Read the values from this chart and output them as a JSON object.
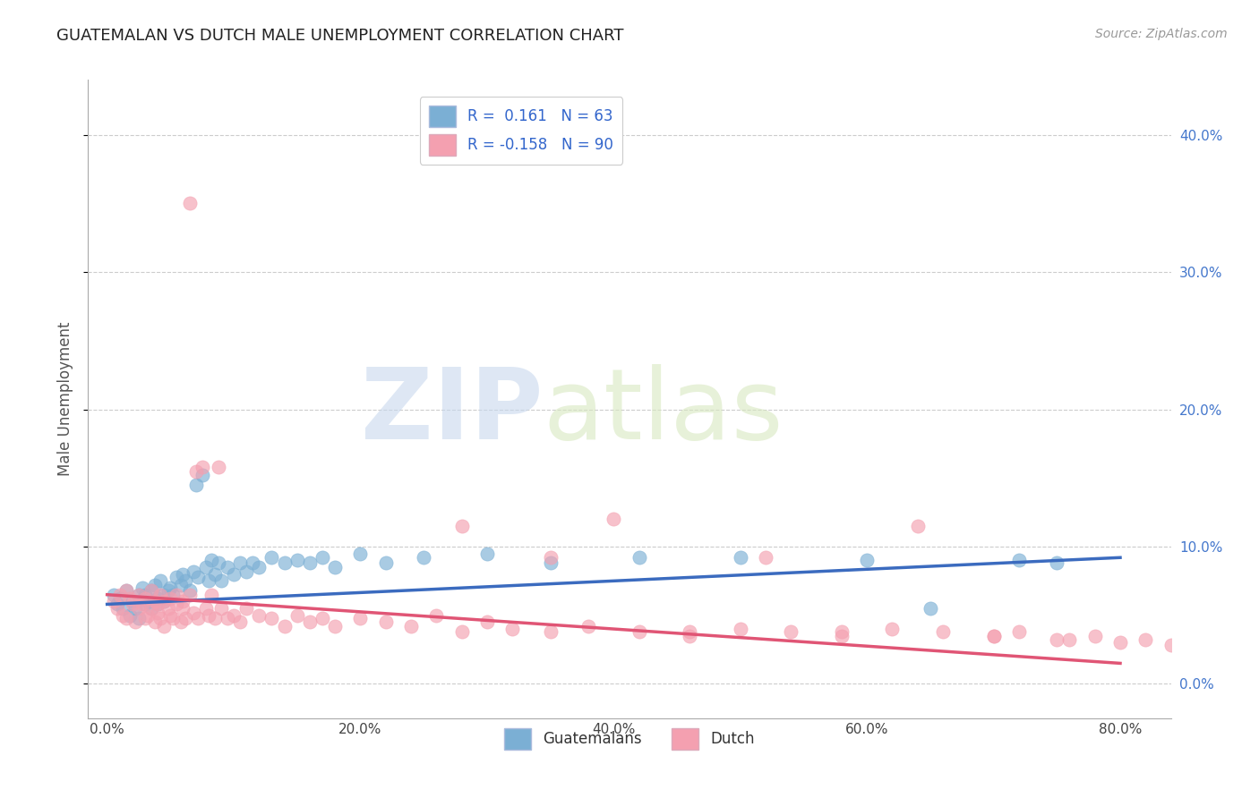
{
  "title": "GUATEMALAN VS DUTCH MALE UNEMPLOYMENT CORRELATION CHART",
  "source": "Source: ZipAtlas.com",
  "ylabel": "Male Unemployment",
  "xlabel_ticks": [
    "0.0%",
    "20.0%",
    "40.0%",
    "60.0%",
    "80.0%"
  ],
  "xlabel_vals": [
    0.0,
    0.2,
    0.4,
    0.6,
    0.8
  ],
  "ylabel_ticks": [
    "0.0%",
    "10.0%",
    "20.0%",
    "30.0%",
    "40.0%"
  ],
  "ylabel_vals": [
    0.0,
    0.1,
    0.2,
    0.3,
    0.4
  ],
  "xlim": [
    -0.015,
    0.84
  ],
  "ylim": [
    -0.025,
    0.44
  ],
  "blue_color": "#7BAFD4",
  "pink_color": "#F4A0B0",
  "blue_line_color": "#3B6BBF",
  "pink_line_color": "#E05575",
  "blue_scatter_x": [
    0.005,
    0.008,
    0.01,
    0.012,
    0.015,
    0.018,
    0.02,
    0.022,
    0.025,
    0.025,
    0.028,
    0.03,
    0.03,
    0.032,
    0.035,
    0.035,
    0.038,
    0.04,
    0.04,
    0.042,
    0.045,
    0.045,
    0.048,
    0.05,
    0.052,
    0.055,
    0.058,
    0.06,
    0.062,
    0.065,
    0.068,
    0.07,
    0.072,
    0.075,
    0.078,
    0.08,
    0.082,
    0.085,
    0.088,
    0.09,
    0.095,
    0.1,
    0.105,
    0.11,
    0.115,
    0.12,
    0.13,
    0.14,
    0.15,
    0.16,
    0.17,
    0.18,
    0.2,
    0.22,
    0.25,
    0.3,
    0.35,
    0.42,
    0.5,
    0.6,
    0.65,
    0.72,
    0.75
  ],
  "blue_scatter_y": [
    0.065,
    0.058,
    0.062,
    0.055,
    0.068,
    0.05,
    0.06,
    0.055,
    0.065,
    0.048,
    0.07,
    0.058,
    0.065,
    0.06,
    0.068,
    0.055,
    0.072,
    0.062,
    0.058,
    0.075,
    0.065,
    0.06,
    0.068,
    0.07,
    0.065,
    0.078,
    0.072,
    0.08,
    0.075,
    0.068,
    0.082,
    0.145,
    0.078,
    0.152,
    0.085,
    0.075,
    0.09,
    0.08,
    0.088,
    0.075,
    0.085,
    0.08,
    0.088,
    0.082,
    0.088,
    0.085,
    0.092,
    0.088,
    0.09,
    0.088,
    0.092,
    0.085,
    0.095,
    0.088,
    0.092,
    0.095,
    0.088,
    0.092,
    0.092,
    0.09,
    0.055,
    0.09,
    0.088
  ],
  "pink_scatter_x": [
    0.005,
    0.008,
    0.01,
    0.012,
    0.015,
    0.015,
    0.018,
    0.02,
    0.022,
    0.025,
    0.025,
    0.028,
    0.03,
    0.03,
    0.032,
    0.035,
    0.035,
    0.038,
    0.038,
    0.04,
    0.04,
    0.042,
    0.042,
    0.045,
    0.045,
    0.048,
    0.05,
    0.05,
    0.052,
    0.055,
    0.055,
    0.058,
    0.06,
    0.06,
    0.062,
    0.065,
    0.065,
    0.068,
    0.07,
    0.072,
    0.075,
    0.078,
    0.08,
    0.082,
    0.085,
    0.088,
    0.09,
    0.095,
    0.1,
    0.105,
    0.11,
    0.12,
    0.13,
    0.14,
    0.15,
    0.16,
    0.17,
    0.18,
    0.2,
    0.22,
    0.24,
    0.26,
    0.28,
    0.3,
    0.32,
    0.35,
    0.38,
    0.42,
    0.46,
    0.5,
    0.54,
    0.58,
    0.62,
    0.66,
    0.7,
    0.72,
    0.75,
    0.78,
    0.8,
    0.82,
    0.84,
    0.28,
    0.35,
    0.4,
    0.46,
    0.52,
    0.58,
    0.64,
    0.7,
    0.76
  ],
  "pink_scatter_y": [
    0.06,
    0.055,
    0.065,
    0.05,
    0.068,
    0.048,
    0.062,
    0.058,
    0.045,
    0.065,
    0.055,
    0.058,
    0.048,
    0.062,
    0.05,
    0.068,
    0.055,
    0.045,
    0.06,
    0.052,
    0.058,
    0.048,
    0.065,
    0.042,
    0.06,
    0.055,
    0.05,
    0.062,
    0.048,
    0.058,
    0.065,
    0.045,
    0.06,
    0.055,
    0.048,
    0.065,
    0.35,
    0.052,
    0.155,
    0.048,
    0.158,
    0.055,
    0.05,
    0.065,
    0.048,
    0.158,
    0.055,
    0.048,
    0.05,
    0.045,
    0.055,
    0.05,
    0.048,
    0.042,
    0.05,
    0.045,
    0.048,
    0.042,
    0.048,
    0.045,
    0.042,
    0.05,
    0.038,
    0.045,
    0.04,
    0.038,
    0.042,
    0.038,
    0.035,
    0.04,
    0.038,
    0.035,
    0.04,
    0.038,
    0.035,
    0.038,
    0.032,
    0.035,
    0.03,
    0.032,
    0.028,
    0.115,
    0.092,
    0.12,
    0.038,
    0.092,
    0.038,
    0.115,
    0.035,
    0.032
  ],
  "blue_trend_x": [
    0.0,
    0.8
  ],
  "blue_trend_y": [
    0.058,
    0.092
  ],
  "pink_trend_x": [
    0.0,
    0.8
  ],
  "pink_trend_y": [
    0.065,
    0.015
  ],
  "background_color": "#FFFFFF",
  "grid_color": "#CCCCCC",
  "legend1_label": "R =  0.161   N = 63",
  "legend2_label": "R = -0.158   N = 90",
  "bottom_legend1": "Guatemalans",
  "bottom_legend2": "Dutch"
}
